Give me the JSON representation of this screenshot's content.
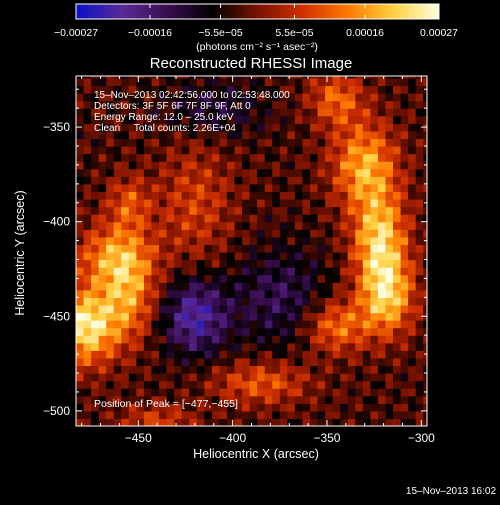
{
  "chart_data": {
    "type": "heatmap",
    "title": "Reconstructed RHESSI Image",
    "xlabel": "Heliocentric X (arcsec)",
    "ylabel": "Heliocentric Y (arcsec)",
    "xlim": [
      -483,
      -297
    ],
    "ylim": [
      -508,
      -323
    ],
    "x_ticks": [
      -450,
      -400,
      -350,
      -300
    ],
    "y_ticks": [
      -350,
      -400,
      -450,
      -500
    ],
    "x_tick_labels": [
      "−450",
      "−400",
      "−350",
      "−300"
    ],
    "y_tick_labels": [
      "−350",
      "−400",
      "−450",
      "−500"
    ],
    "colorbar": {
      "min": -0.00027,
      "max": 0.00027,
      "tick_values": [
        -0.00027,
        -0.00016,
        -5.5e-05,
        5.5e-05,
        0.00016,
        0.00027
      ],
      "tick_labels": [
        "−0.00027",
        "−0.00016",
        "−5.5e−05",
        "5.5e−05",
        "0.00016",
        "0.00027"
      ],
      "units_label": "(photons cm⁻² s⁻¹ asec⁻²)"
    },
    "annotations": [
      "15–Nov–2013 02:42:56.000 to 02:53:48.000",
      "Detectors: 3F 5F 6F 7F 8F 9F, Att 0",
      "Energy Range: 12.0 – 25.0 keV",
      "Clean     Total counts: 2.26E+04"
    ],
    "peak_label": "Position of Peak = [−477,−455]",
    "peak": [
      -477,
      -455
    ],
    "grid": false,
    "colormap": [
      "#0a10c8",
      "#5a2a9a",
      "#3a0d52",
      "#000000",
      "#7a1200",
      "#d03000",
      "#ff7a00",
      "#ffd040",
      "#ffffe0"
    ],
    "image": {
      "pixel_size_arcsec": 4,
      "background_value": -3e-05,
      "sources": [
        {
          "x": -478,
          "y": -455,
          "peak": 0.00027,
          "sx": 12,
          "sy": 14
        },
        {
          "x": -462,
          "y": -418,
          "peak": 0.00018,
          "sx": 14,
          "sy": 12
        },
        {
          "x": -455,
          "y": -440,
          "peak": 0.00016,
          "sx": 10,
          "sy": 16
        },
        {
          "x": -330,
          "y": -370,
          "peak": 0.0002,
          "sx": 12,
          "sy": 16
        },
        {
          "x": -322,
          "y": -410,
          "peak": 0.00024,
          "sx": 10,
          "sy": 18
        },
        {
          "x": -318,
          "y": -440,
          "peak": 0.00021,
          "sx": 10,
          "sy": 14
        },
        {
          "x": -345,
          "y": -455,
          "peak": 0.00016,
          "sx": 12,
          "sy": 10
        },
        {
          "x": -345,
          "y": -335,
          "peak": 0.00014,
          "sx": 10,
          "sy": 10
        },
        {
          "x": -385,
          "y": -485,
          "peak": 0.00013,
          "sx": 18,
          "sy": 8
        },
        {
          "x": -420,
          "y": -390,
          "peak": 0.0001,
          "sx": 14,
          "sy": 22
        },
        {
          "x": -455,
          "y": -390,
          "peak": 0.00012,
          "sx": 8,
          "sy": 10
        },
        {
          "x": -440,
          "y": -505,
          "peak": 0.0001,
          "sx": 14,
          "sy": 6
        },
        {
          "x": -420,
          "y": -450,
          "peak": -0.00018,
          "sx": 12,
          "sy": 14
        },
        {
          "x": -375,
          "y": -440,
          "peak": -0.0001,
          "sx": 18,
          "sy": 18
        },
        {
          "x": -410,
          "y": -340,
          "peak": -8e-05,
          "sx": 18,
          "sy": 10
        }
      ]
    }
  },
  "footer_timestamp": "15–Nov–2013 16:02"
}
